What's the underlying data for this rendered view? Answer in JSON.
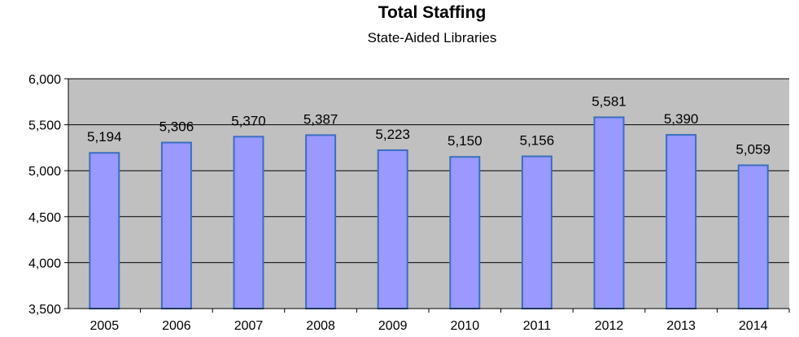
{
  "chart_data": {
    "type": "bar",
    "title": "Total Staffing",
    "subtitle": "State-Aided Libraries",
    "categories": [
      "2005",
      "2006",
      "2007",
      "2008",
      "2009",
      "2010",
      "2011",
      "2012",
      "2013",
      "2014"
    ],
    "values": [
      5194,
      5306,
      5370,
      5387,
      5223,
      5150,
      5156,
      5581,
      5390,
      5059
    ],
    "data_labels": [
      "5,194",
      "5,306",
      "5,370",
      "5,387",
      "5,223",
      "5,150",
      "5,156",
      "5,581",
      "5,390",
      "5,059"
    ],
    "y_ticks": [
      3500,
      4000,
      4500,
      5000,
      5500,
      6000
    ],
    "y_tick_labels": [
      "3,500",
      "4,000",
      "4,500",
      "5,000",
      "5,500",
      "6,000"
    ],
    "ylim": [
      3500,
      6000
    ],
    "xlabel": "",
    "ylabel": "",
    "grid": true,
    "legend": "none"
  },
  "colors": {
    "plot_background": "#c0c0c0",
    "bar_fill": "#9999ff",
    "bar_stroke": "#3b6fbf",
    "grid_line": "#000000",
    "axis_line": "#000000"
  }
}
